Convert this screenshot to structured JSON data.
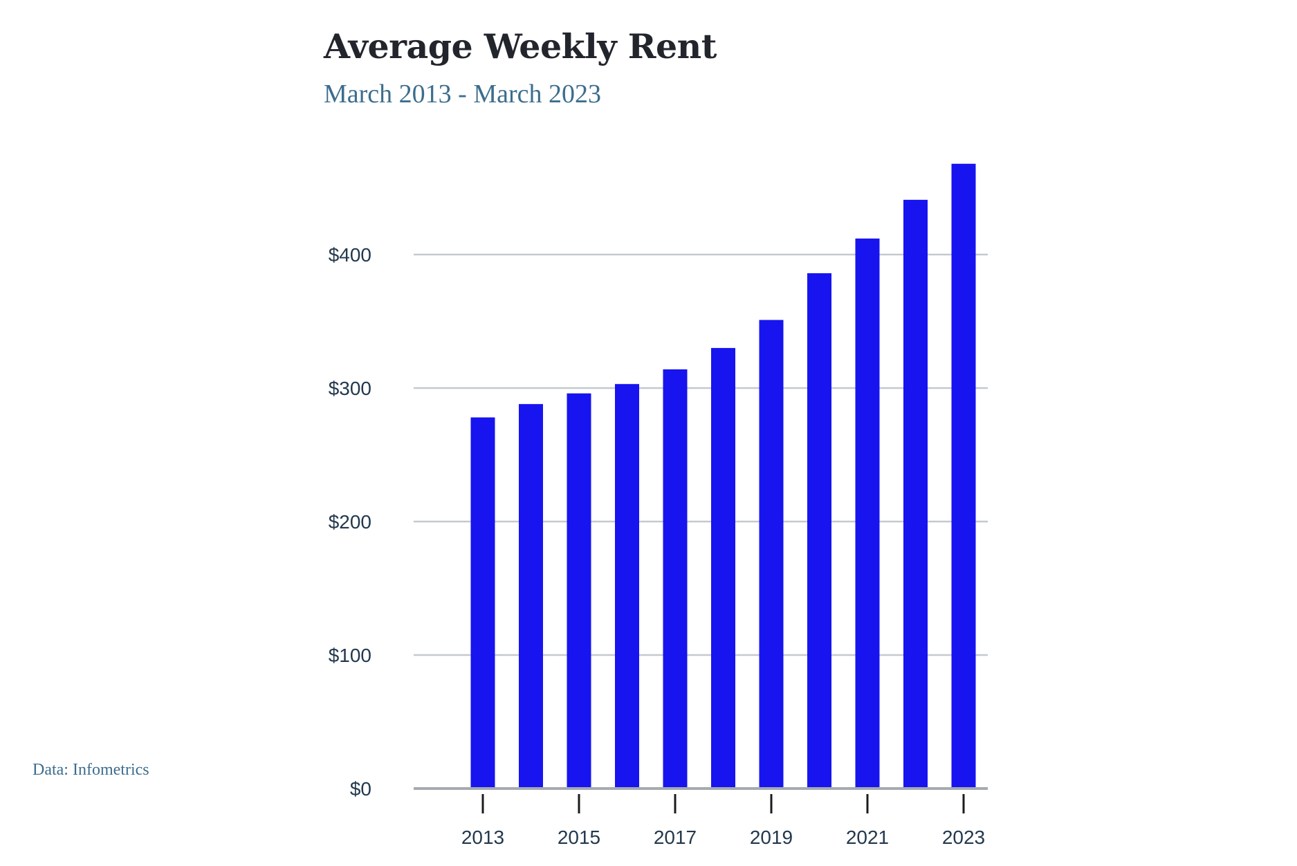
{
  "chart_data": {
    "type": "bar",
    "title": "Average Weekly Rent",
    "subtitle": "March 2013 - March 2023",
    "source": "Data: Infometrics",
    "xlabel": "",
    "ylabel": "",
    "categories": [
      "2013",
      "2014",
      "2015",
      "2016",
      "2017",
      "2018",
      "2019",
      "2020",
      "2021",
      "2022",
      "2023"
    ],
    "values": [
      278,
      288,
      296,
      303,
      314,
      330,
      351,
      386,
      412,
      441,
      468
    ],
    "ylim": [
      0,
      480
    ],
    "y_ticks": [
      0,
      100,
      200,
      300,
      400
    ],
    "y_tick_labels": [
      "$0",
      "$100",
      "$200",
      "$300",
      "$400"
    ],
    "x_tick_labels": [
      "2013",
      "2015",
      "2017",
      "2019",
      "2021",
      "2023"
    ],
    "grid": "horizontal",
    "legend": "none",
    "colors": {
      "bar": "#1714f0",
      "grid": "#c3c9cf",
      "baseline": "#a4aab0",
      "tick_mark": "#1b1b1b",
      "tick_text": "#23384d",
      "title": "#23252d",
      "subtitle": "#3c6d8d"
    }
  }
}
